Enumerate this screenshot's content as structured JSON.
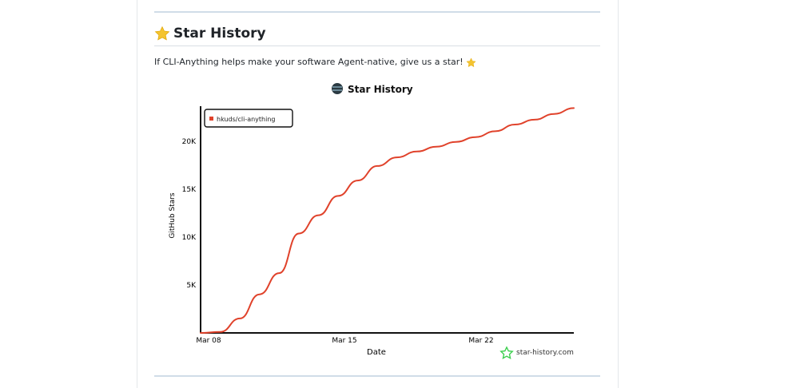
{
  "section": {
    "title_icon": "star-emoji",
    "title": "Star History",
    "intro_text": "If CLI-Anything helps make your software Agent-native, give us a star!",
    "intro_icon": "star-emoji"
  },
  "colors": {
    "line": "#e0422b",
    "legend_swatch": "#e0422b",
    "brand_green": "#3ccf4e"
  },
  "chart_data": {
    "type": "line",
    "title": "Star History",
    "xlabel": "Date",
    "ylabel": "GitHub Stars",
    "x_ticks": [
      "Mar 08",
      "Mar 15",
      "Mar 22"
    ],
    "y_ticks": [
      "5K",
      "10K",
      "15K",
      "20K"
    ],
    "legend_position": "top-left",
    "watermark": "star-history.com",
    "ylim": [
      0,
      23500
    ],
    "xlim": [
      "2026-03-08",
      "2026-03-27"
    ],
    "series": [
      {
        "name": "hkuds/cli-anything",
        "x": [
          "2026-03-08",
          "2026-03-09",
          "2026-03-10",
          "2026-03-11",
          "2026-03-12",
          "2026-03-13",
          "2026-03-14",
          "2026-03-15",
          "2026-03-16",
          "2026-03-17",
          "2026-03-18",
          "2026-03-19",
          "2026-03-20",
          "2026-03-21",
          "2026-03-22",
          "2026-03-23",
          "2026-03-24",
          "2026-03-25",
          "2026-03-26",
          "2026-03-27"
        ],
        "values": [
          0,
          100,
          1500,
          4000,
          6200,
          10300,
          12200,
          14200,
          15800,
          17300,
          18200,
          18800,
          19300,
          19800,
          20300,
          20900,
          21600,
          22100,
          22700,
          23300
        ]
      }
    ]
  }
}
